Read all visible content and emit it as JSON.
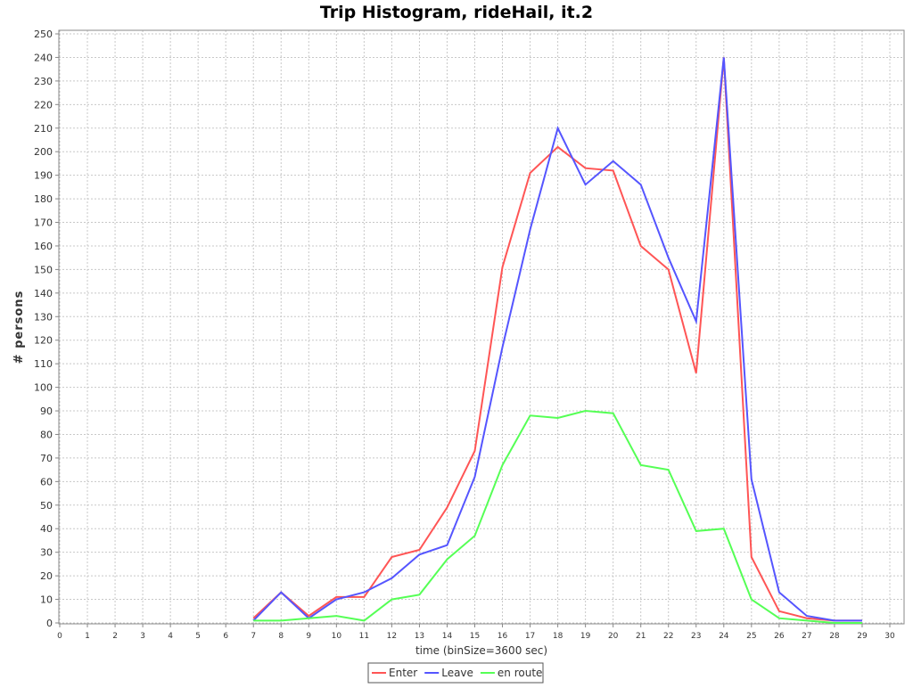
{
  "chart_data": {
    "type": "line",
    "title": "Trip Histogram, rideHail, it.2",
    "xlabel": "time (binSize=3600 sec)",
    "ylabel": "# persons",
    "xlim": [
      0,
      30
    ],
    "ylim": [
      0,
      250
    ],
    "x_ticks": [
      0,
      1,
      2,
      3,
      4,
      5,
      6,
      7,
      8,
      9,
      10,
      11,
      12,
      13,
      14,
      15,
      16,
      17,
      18,
      19,
      20,
      21,
      22,
      23,
      24,
      25,
      26,
      27,
      28,
      29,
      30
    ],
    "y_ticks": [
      0,
      10,
      20,
      30,
      40,
      50,
      60,
      70,
      80,
      90,
      100,
      110,
      120,
      130,
      140,
      150,
      160,
      170,
      180,
      190,
      200,
      210,
      220,
      230,
      240,
      250
    ],
    "grid": true,
    "legend_position": "bottom-center",
    "x": [
      7,
      8,
      9,
      10,
      11,
      12,
      13,
      14,
      15,
      16,
      17,
      18,
      19,
      20,
      21,
      22,
      23,
      24,
      25,
      26,
      27,
      28,
      29
    ],
    "series": [
      {
        "name": "Enter",
        "color": "#ff5555",
        "values": [
          2,
          13,
          3,
          11,
          11,
          28,
          31,
          49,
          73,
          151,
          191,
          202,
          193,
          192,
          160,
          150,
          106,
          240,
          28,
          5,
          2,
          1,
          1
        ]
      },
      {
        "name": "Leave",
        "color": "#5555ff",
        "values": [
          1,
          13,
          2,
          10,
          13,
          19,
          29,
          33,
          62,
          117,
          167,
          210,
          186,
          196,
          186,
          155,
          128,
          240,
          61,
          13,
          3,
          1,
          1
        ]
      },
      {
        "name": "en route",
        "color": "#55ff55",
        "values": [
          1,
          1,
          2,
          3,
          1,
          10,
          12,
          27,
          37,
          67,
          88,
          87,
          90,
          89,
          67,
          65,
          39,
          40,
          10,
          2,
          1,
          0,
          0
        ]
      }
    ]
  }
}
